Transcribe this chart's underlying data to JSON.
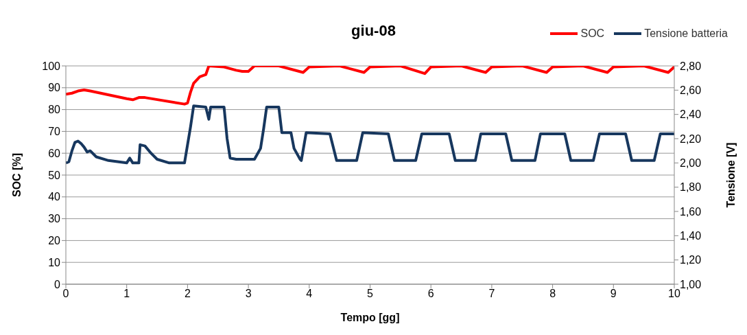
{
  "chart_data": {
    "type": "line",
    "title": "giu-08",
    "xlabel": "Tempo [gg]",
    "ylabel": "SOC [%]",
    "y2label": "Tensione [V]",
    "xlim": [
      0,
      10
    ],
    "xticks": [
      0,
      1,
      2,
      3,
      4,
      5,
      6,
      7,
      8,
      9,
      10
    ],
    "ylim": [
      0,
      100
    ],
    "yticks": [
      0,
      10,
      20,
      30,
      40,
      50,
      60,
      70,
      80,
      90,
      100
    ],
    "y2lim": [
      1,
      2.8
    ],
    "y2ticks": [
      {
        "value": 1,
        "label": "1,00"
      },
      {
        "value": 1.2,
        "label": "1,20"
      },
      {
        "value": 1.4,
        "label": "1,40"
      },
      {
        "value": 1.6,
        "label": "1,60"
      },
      {
        "value": 1.8,
        "label": "1,80"
      },
      {
        "value": 2,
        "label": "2,00"
      },
      {
        "value": 2.2,
        "label": "2,20"
      },
      {
        "value": 2.4,
        "label": "2,40"
      },
      {
        "value": 2.6,
        "label": "2,60"
      },
      {
        "value": 2.8,
        "label": "2,80"
      }
    ],
    "grid": "y",
    "legend": "top right",
    "marker": "none",
    "line_style": "solid",
    "series": [
      {
        "name": "SOC",
        "color": "#ff0000",
        "x": [
          0,
          0.1,
          0.2,
          0.3,
          0.4,
          1.0,
          1.1,
          1.2,
          1.3,
          1.95,
          2.0,
          2.05,
          2.1,
          2.2,
          2.3,
          2.35,
          2.6,
          2.8,
          2.9,
          3.0,
          3.1,
          3.5,
          3.9,
          4.0,
          4.5,
          4.9,
          5.0,
          5.5,
          5.9,
          6.0,
          6.5,
          6.9,
          7.0,
          7.5,
          7.9,
          8.0,
          8.5,
          8.9,
          9.0,
          9.5,
          9.9,
          10.0
        ],
        "values": [
          87,
          87.5,
          88.5,
          89,
          88.5,
          85,
          84.5,
          85.5,
          85.5,
          82.5,
          83,
          88,
          92,
          95,
          96,
          100,
          99.5,
          98,
          97.5,
          97.5,
          100,
          100,
          97,
          99.5,
          100,
          97,
          99.5,
          100,
          96.5,
          99.5,
          100,
          97,
          99.5,
          100,
          97,
          99.5,
          100,
          97,
          99.5,
          100,
          97,
          99.5
        ]
      },
      {
        "name": "Tensione batteria",
        "color": "#17375e",
        "axis": "y2",
        "x": [
          0,
          0.05,
          0.1,
          0.15,
          0.2,
          0.25,
          0.3,
          0.35,
          0.4,
          0.5,
          0.7,
          1.0,
          1.05,
          1.1,
          1.2,
          1.22,
          1.3,
          1.4,
          1.5,
          1.7,
          1.95,
          2.05,
          2.1,
          2.3,
          2.35,
          2.38,
          2.6,
          2.65,
          2.7,
          2.8,
          3.1,
          3.2,
          3.25,
          3.3,
          3.5,
          3.55,
          3.7,
          3.75,
          3.85,
          3.87,
          3.95,
          4.34,
          4.45,
          4.78,
          4.88,
          5.3,
          5.4,
          5.75,
          5.85,
          6.3,
          6.4,
          6.73,
          6.82,
          7.23,
          7.33,
          7.71,
          7.8,
          8.2,
          8.3,
          8.67,
          8.77,
          9.2,
          9.3,
          9.67,
          9.77,
          10.0
        ],
        "values": [
          2.0,
          2.01,
          2.1,
          2.17,
          2.18,
          2.16,
          2.13,
          2.09,
          2.1,
          2.05,
          2.02,
          2.0,
          2.04,
          2.0,
          2.0,
          2.15,
          2.14,
          2.08,
          2.03,
          2.0,
          2.0,
          2.3,
          2.47,
          2.46,
          2.36,
          2.46,
          2.46,
          2.2,
          2.04,
          2.03,
          2.03,
          2.12,
          2.28,
          2.46,
          2.46,
          2.25,
          2.25,
          2.12,
          2.03,
          2.02,
          2.25,
          2.24,
          2.02,
          2.02,
          2.25,
          2.24,
          2.02,
          2.02,
          2.24,
          2.24,
          2.02,
          2.02,
          2.24,
          2.24,
          2.02,
          2.02,
          2.24,
          2.24,
          2.02,
          2.02,
          2.24,
          2.24,
          2.02,
          2.02,
          2.24,
          2.24
        ]
      }
    ]
  }
}
